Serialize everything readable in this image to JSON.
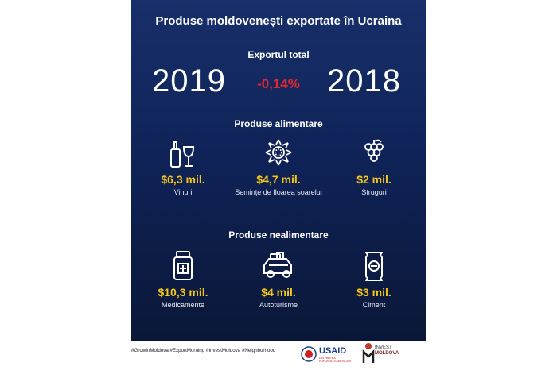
{
  "title": "Produse moldovenești exportate în Ucraina",
  "export": {
    "label": "Exportul total",
    "year_left": "2019",
    "change": "-0,14%",
    "year_right": "2018"
  },
  "food": {
    "heading": "Produse alimentare",
    "items": [
      {
        "value": "$6,3 mil.",
        "label": "Vinuri",
        "icon": "wine-icon"
      },
      {
        "value": "$4,7 mil.",
        "label": "Semințe de floarea soarelui",
        "icon": "sunflower-icon"
      },
      {
        "value": "$2 mil.",
        "label": "Struguri",
        "icon": "grapes-icon"
      }
    ]
  },
  "nonfood": {
    "heading": "Produse nealimentare",
    "items": [
      {
        "value": "$10,3 mil.",
        "label": "Medicamente",
        "icon": "medicine-icon"
      },
      {
        "value": "$4 mil.",
        "label": "Autoturisme",
        "icon": "car-icon"
      },
      {
        "value": "$3 mil.",
        "label": "Ciment",
        "icon": "cement-bag-icon"
      }
    ]
  },
  "footer": {
    "hashtags": "#GrowInMoldova #ExportMorning #InvestMoldova #Neighborhood",
    "usaid": "USAID",
    "usaid_sub": "DIN PARTEA POPORULUI AMERICAN",
    "invest_line1": "INVEST",
    "invest_line2": "MOLDOVA"
  },
  "colors": {
    "background": "#0f2358",
    "accent_value": "#f5c518",
    "change_negative": "#e8262c"
  }
}
